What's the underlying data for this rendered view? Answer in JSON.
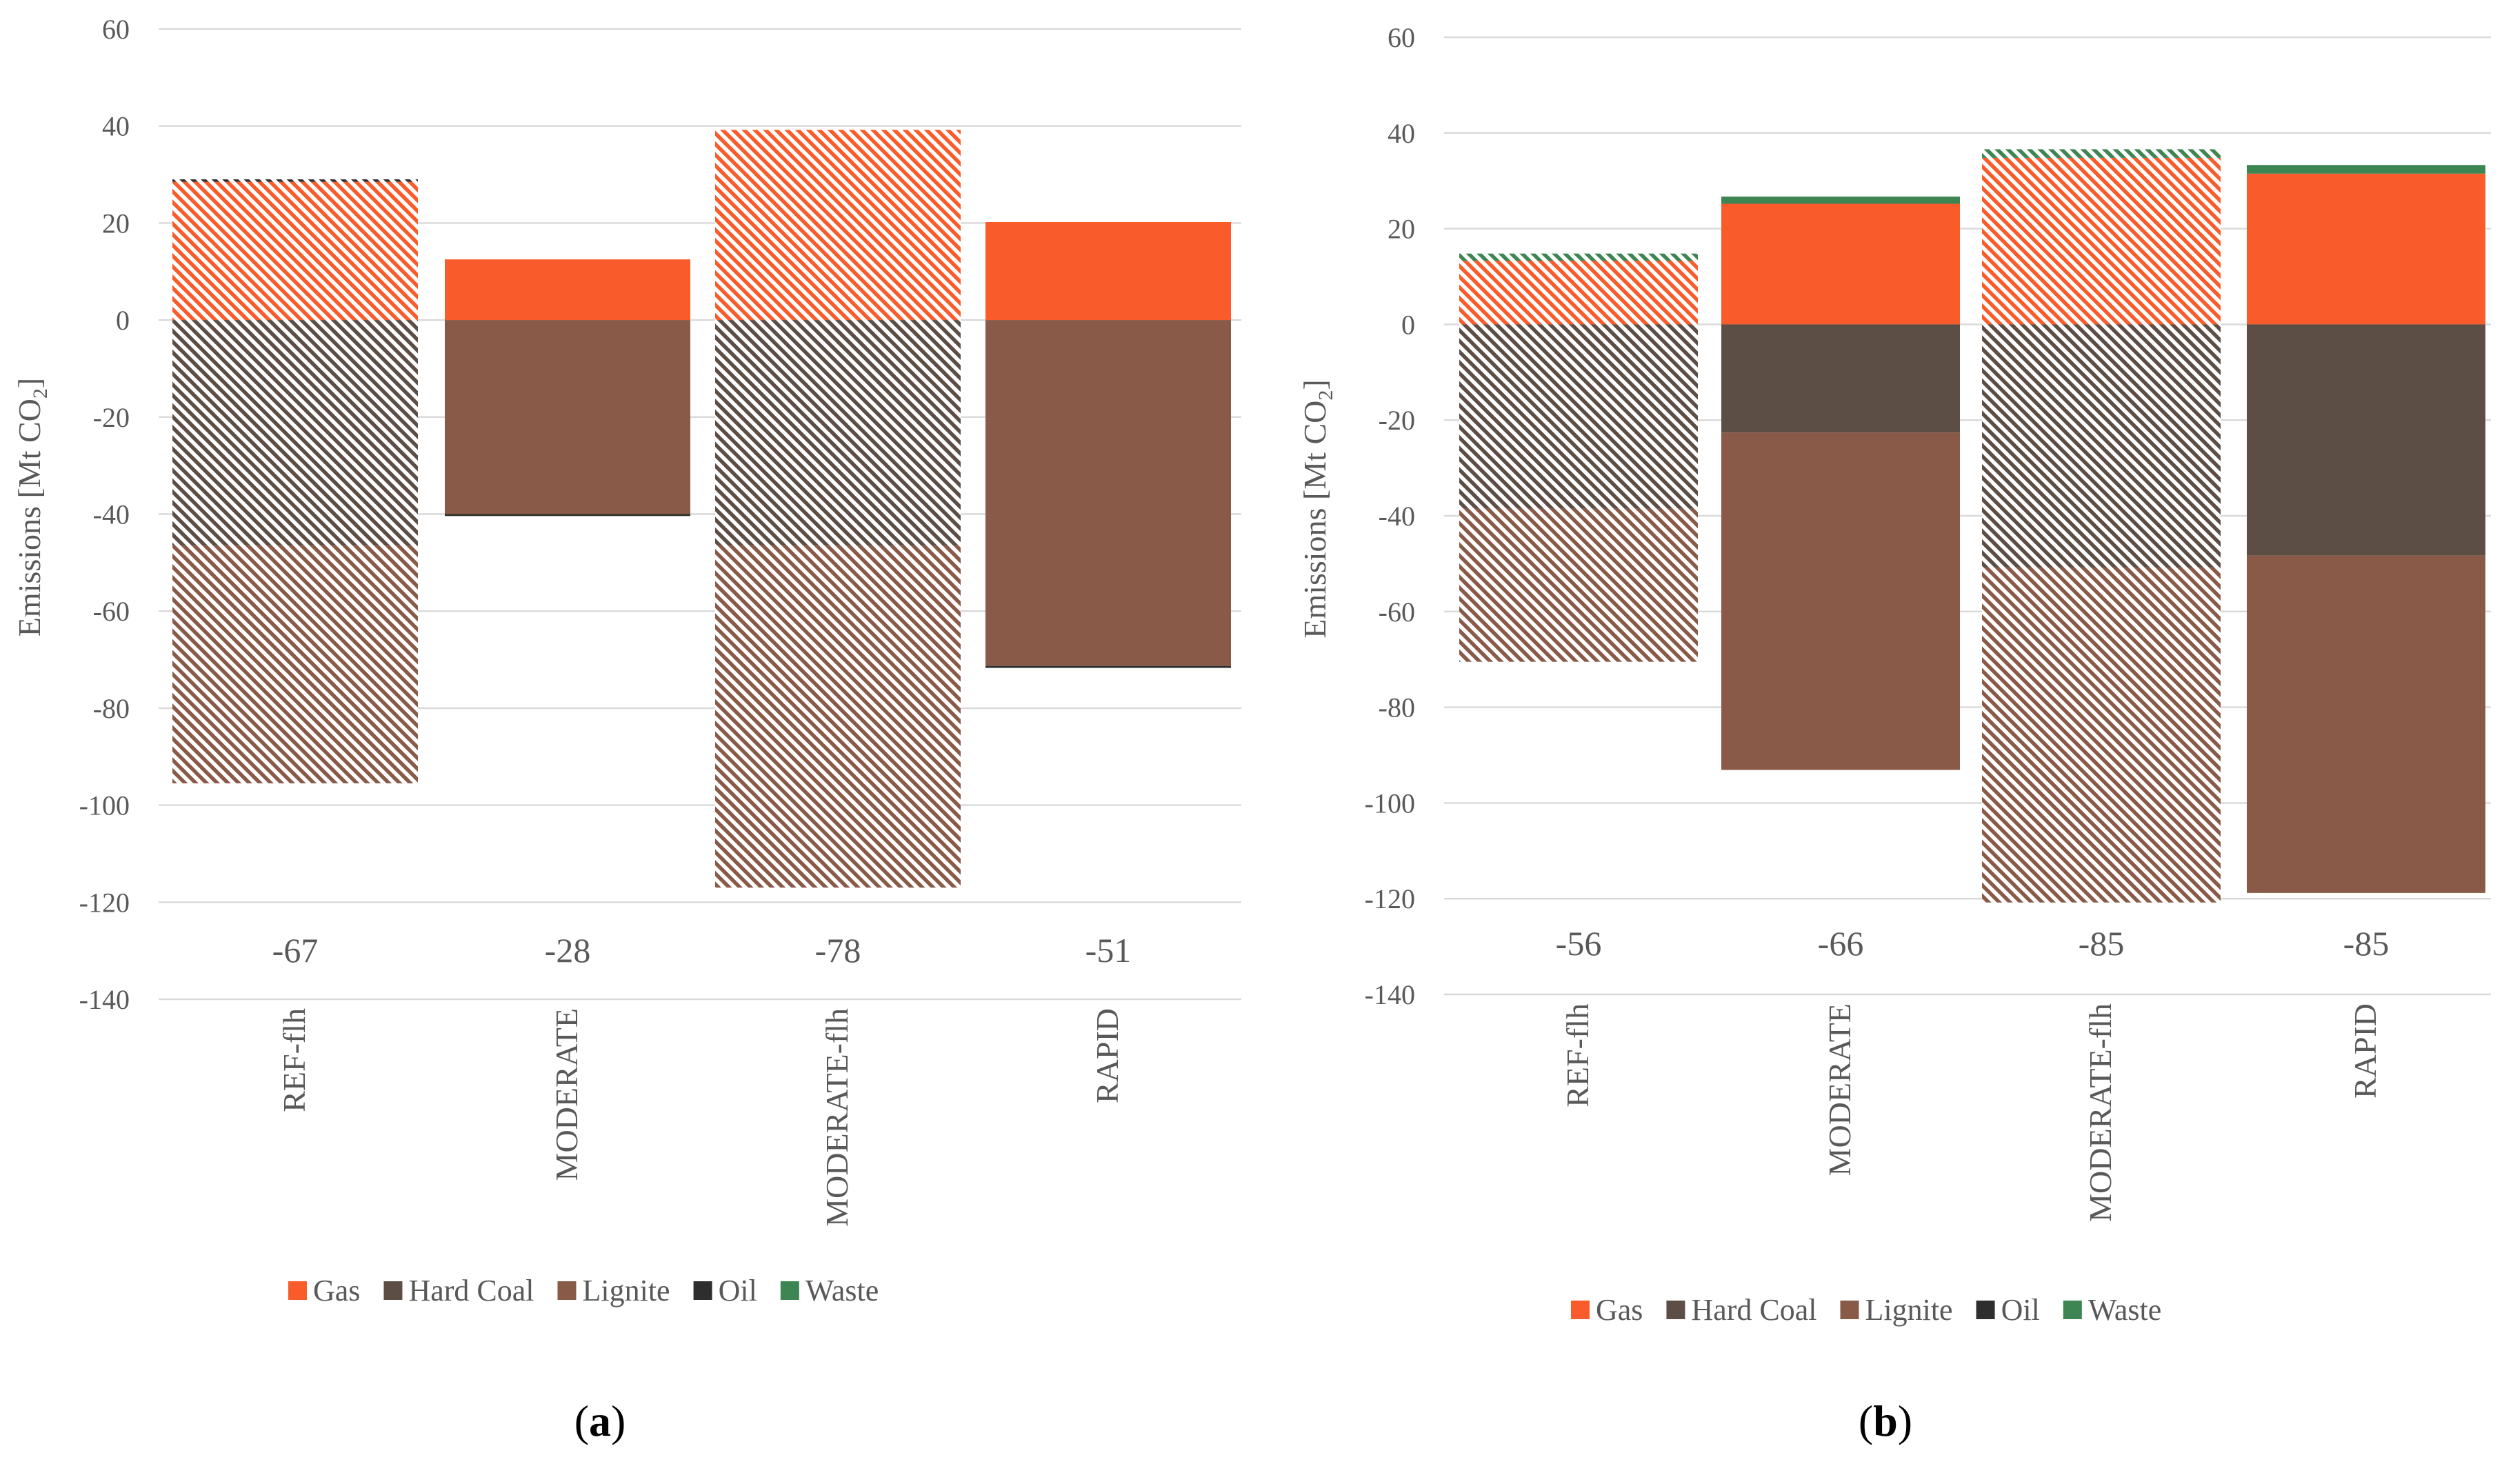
{
  "colors": {
    "Gas": "#fa5b2a",
    "Hard Coal": "#5d4e45",
    "Lignite": "#895a48",
    "Oil": "#2e2e2e",
    "Waste": "#3d8552"
  },
  "chart_data": [
    {
      "type": "bar",
      "stacked": true,
      "panel_label": {
        "open": "(",
        "letter": "a",
        "close": ")"
      },
      "ylabel": {
        "main": "Emissions  [Mt CO",
        "sub": "2",
        "end": "]"
      },
      "ylim": [
        -140,
        60
      ],
      "yticks": [
        60,
        40,
        20,
        0,
        -20,
        -40,
        -60,
        -80,
        -100,
        -120,
        -140
      ],
      "ytick_labels": [
        "60",
        "40",
        "20",
        "0",
        "-20",
        "-40",
        "-60",
        "-80",
        "-100",
        "-120",
        "-140"
      ],
      "grid": true,
      "legend": "bottom",
      "categories": [
        "REF-flh",
        "MODERATE",
        "MODERATE-flh",
        "RAPID"
      ],
      "hatched": [
        true,
        false,
        true,
        false
      ],
      "totals": [
        "-67",
        "-28",
        "-78",
        "-51"
      ],
      "series": [
        {
          "name": "Gas",
          "values": [
            28.5,
            12.5,
            39.2,
            20.2
          ]
        },
        {
          "name": "Hard Coal",
          "values": [
            -46.5,
            0,
            -46.5,
            0
          ]
        },
        {
          "name": "Lignite",
          "values": [
            -49,
            -40,
            -70.5,
            -71.3
          ]
        },
        {
          "name": "Oil",
          "values": [
            0.5,
            -0.4,
            0,
            -0.4
          ]
        },
        {
          "name": "Waste",
          "values": [
            0,
            0,
            0,
            0
          ]
        }
      ]
    },
    {
      "type": "bar",
      "stacked": true,
      "panel_label": {
        "open": "(",
        "letter": "b",
        "close": ")"
      },
      "ylabel": {
        "main": "Emissions  [Mt CO",
        "sub": "2",
        "end": "]"
      },
      "ylim": [
        -140,
        60
      ],
      "yticks": [
        60,
        40,
        20,
        0,
        -20,
        -40,
        -60,
        -80,
        -100,
        -120,
        -140
      ],
      "ytick_labels": [
        "60",
        "40",
        "20",
        "0",
        "-20",
        "-40",
        "-60",
        "-80",
        "-100",
        "-120",
        "-140"
      ],
      "grid": true,
      "legend": "bottom",
      "categories": [
        "REF-flh",
        "MODERATE",
        "MODERATE-flh",
        "RAPID"
      ],
      "hatched": [
        true,
        false,
        true,
        false
      ],
      "totals": [
        "-56",
        "-66",
        "-85",
        "-85"
      ],
      "series": [
        {
          "name": "Gas",
          "values": [
            13.3,
            25.2,
            34.8,
            31.5
          ]
        },
        {
          "name": "Hard Coal",
          "values": [
            -38.5,
            -22.6,
            -50.8,
            -48.3
          ]
        },
        {
          "name": "Lignite",
          "values": [
            -32,
            -70.5,
            -70,
            -70.5
          ]
        },
        {
          "name": "Oil",
          "values": [
            0,
            0,
            0,
            0
          ]
        },
        {
          "name": "Waste",
          "values": [
            1.5,
            1.5,
            1.8,
            1.8
          ]
        }
      ]
    }
  ]
}
